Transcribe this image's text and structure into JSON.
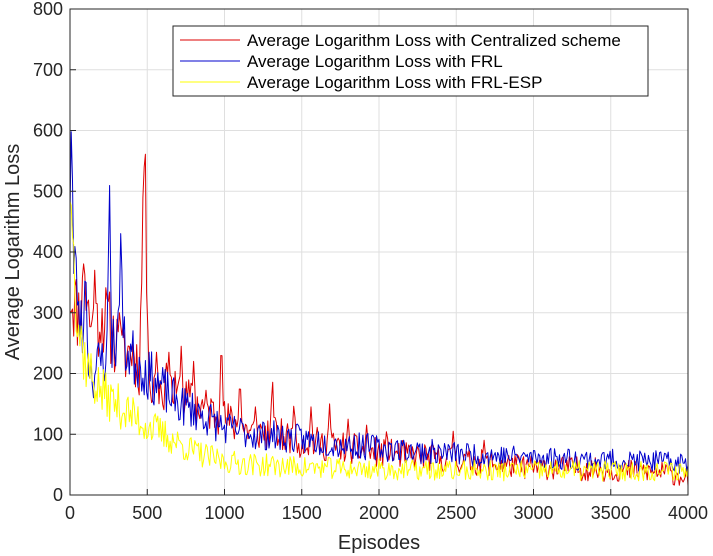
{
  "chart_data": {
    "type": "line",
    "xlabel": "Episodes",
    "ylabel": "Average Logarithm Loss",
    "xlim": [
      0,
      4000
    ],
    "ylim": [
      0,
      800
    ],
    "xticks": [
      "0",
      "500",
      "1000",
      "1500",
      "2000",
      "2500",
      "3000",
      "3500",
      "4000"
    ],
    "yticks": [
      "0",
      "100",
      "200",
      "300",
      "400",
      "500",
      "600",
      "700",
      "800"
    ],
    "grid": true,
    "legend_position": "top-right",
    "series": [
      {
        "name": "Average Logarithm Loss with Centralized scheme",
        "color": "#dd0000",
        "noise": 12,
        "seed": 11,
        "x": [
          0,
          50,
          100,
          150,
          200,
          250,
          300,
          350,
          400,
          450,
          480,
          520,
          600,
          700,
          800,
          900,
          1000,
          1100,
          1200,
          1300,
          1400,
          1500,
          1600,
          1700,
          1800,
          1900,
          2000,
          2200,
          2400,
          2500,
          2600,
          2800,
          3000,
          3200,
          3400,
          3600,
          3800,
          4000
        ],
        "y": [
          340,
          300,
          330,
          260,
          300,
          280,
          250,
          230,
          240,
          210,
          540,
          170,
          180,
          160,
          150,
          140,
          125,
          110,
          105,
          100,
          95,
          88,
          85,
          80,
          78,
          72,
          70,
          65,
          60,
          58,
          55,
          50,
          45,
          45,
          42,
          40,
          38,
          30
        ],
        "spikes": [
          [
            90,
            390
          ],
          [
            160,
            370
          ],
          [
            250,
            325
          ],
          [
            320,
            300
          ],
          [
            480,
            540
          ],
          [
            560,
            235
          ],
          [
            640,
            235
          ],
          [
            720,
            245
          ],
          [
            800,
            220
          ],
          [
            980,
            270
          ],
          [
            1100,
            200
          ],
          [
            1200,
            145
          ],
          [
            1310,
            200
          ],
          [
            1450,
            155
          ],
          [
            1560,
            145
          ],
          [
            1680,
            150
          ],
          [
            1800,
            125
          ],
          [
            1920,
            115
          ],
          [
            2050,
            110
          ],
          [
            2480,
            105
          ],
          [
            2680,
            90
          ]
        ]
      },
      {
        "name": "Average Logarithm Loss with FRL",
        "color": "#0000cc",
        "noise": 8,
        "seed": 23,
        "x": [
          0,
          50,
          100,
          150,
          200,
          300,
          400,
          500,
          600,
          700,
          800,
          900,
          1000,
          1200,
          1400,
          1600,
          1800,
          2000,
          2200,
          2400,
          2600,
          2800,
          3000,
          3200,
          3400,
          3600,
          3800,
          4000
        ],
        "y": [
          390,
          300,
          240,
          200,
          220,
          260,
          230,
          200,
          175,
          150,
          140,
          125,
          110,
          100,
          95,
          88,
          82,
          78,
          73,
          70,
          67,
          64,
          62,
          60,
          58,
          57,
          55,
          52
        ],
        "spikes": [
          [
            10,
            635
          ],
          [
            35,
            430
          ],
          [
            100,
            395
          ],
          [
            255,
            530
          ],
          [
            330,
            460
          ]
        ]
      },
      {
        "name": "Average Logarithm Loss with FRL-ESP",
        "color": "#ffff00",
        "noise": 10,
        "seed": 37,
        "x": [
          0,
          30,
          60,
          100,
          150,
          200,
          300,
          400,
          500,
          600,
          700,
          800,
          900,
          1000,
          1200,
          1400,
          1600,
          1800,
          2000,
          2200,
          2400,
          2600,
          2800,
          3000,
          3200,
          3400,
          3600,
          3800,
          4000
        ],
        "y": [
          470,
          310,
          270,
          220,
          190,
          170,
          150,
          130,
          115,
          100,
          85,
          72,
          62,
          55,
          50,
          47,
          45,
          43,
          42,
          41,
          40,
          40,
          40,
          40,
          40,
          40,
          40,
          40,
          40
        ],
        "spikes": [
          [
            5,
            490
          ],
          [
            20,
            440
          ]
        ]
      }
    ]
  }
}
